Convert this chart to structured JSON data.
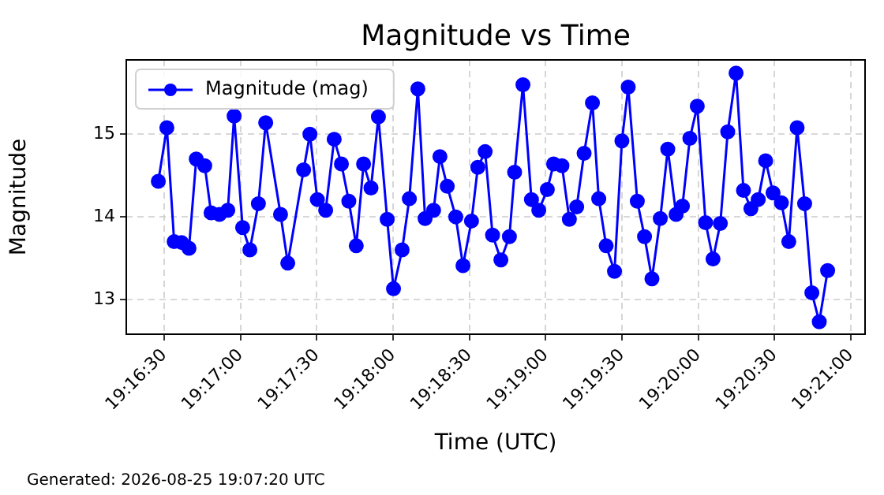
{
  "chart_data": {
    "type": "line",
    "title": "Magnitude vs Time",
    "xlabel": "Time (UTC)",
    "ylabel": "Magnitude",
    "annotations": [
      "Generated: 2026-08-25 19:07:20 UTC"
    ],
    "x": [
      19.27436,
      19.27529,
      19.27609,
      19.2769,
      19.27771,
      19.2785,
      19.27943,
      19.28012,
      19.28104,
      19.28195,
      19.28264,
      19.28357,
      19.28436,
      19.28529,
      19.28609,
      19.28771,
      19.2885,
      19.29023,
      19.29092,
      19.29173,
      19.29264,
      19.29357,
      19.29436,
      19.29517,
      19.29598,
      19.29678,
      19.29759,
      19.2984,
      19.29936,
      19.30005,
      19.30099,
      19.30178,
      19.30271,
      19.3035,
      19.30443,
      19.30512,
      19.30592,
      19.30685,
      19.30764,
      19.30857,
      19.30926,
      19.31006,
      19.31087,
      19.31178,
      19.31271,
      19.31328,
      19.31419,
      19.31512,
      19.31592,
      19.31685,
      19.31754,
      19.31845,
      19.31926,
      19.32006,
      19.32087,
      19.32178,
      19.32247,
      19.32328,
      19.32419,
      19.325,
      19.32569,
      19.32668,
      19.32747,
      19.32828,
      19.32919,
      19.33001,
      19.33092,
      19.33161,
      19.33242,
      19.33323,
      19.33414,
      19.33495,
      19.33575,
      19.33656,
      19.33747,
      19.33828,
      19.33909,
      19.33989,
      19.3407,
      19.34151,
      19.34242,
      19.34323,
      19.34414,
      19.34496,
      19.34575,
      19.34656,
      19.34747
    ],
    "series": [
      {
        "name": "Magnitude (mag)",
        "color": "#0000ff",
        "values": [
          14.43,
          15.08,
          13.7,
          13.69,
          13.62,
          14.7,
          14.62,
          14.05,
          14.03,
          14.08,
          15.22,
          13.87,
          13.6,
          14.16,
          15.14,
          14.03,
          13.44,
          14.57,
          15.0,
          14.21,
          14.08,
          14.94,
          14.64,
          14.19,
          13.65,
          14.64,
          14.35,
          15.21,
          13.97,
          13.13,
          13.6,
          14.22,
          15.55,
          13.98,
          14.08,
          14.73,
          14.37,
          14.0,
          13.41,
          13.95,
          14.6,
          14.79,
          13.78,
          13.48,
          13.76,
          14.54,
          15.6,
          14.21,
          14.08,
          14.33,
          14.64,
          14.62,
          13.97,
          14.12,
          14.77,
          15.38,
          14.22,
          13.65,
          13.34,
          14.92,
          15.57,
          14.19,
          13.76,
          13.25,
          13.98,
          14.82,
          14.03,
          14.13,
          14.95,
          15.34,
          13.93,
          13.49,
          13.92,
          15.03,
          15.74,
          14.32,
          14.1,
          14.21,
          14.68,
          14.29,
          14.17,
          13.7,
          15.08,
          14.16,
          13.08,
          12.73,
          13.35
        ]
      }
    ],
    "xlim": [
      19.27086,
      19.35156
    ],
    "xticks": [
      {
        "value": 19.275,
        "label": "19:16:30"
      },
      {
        "value": 19.28333,
        "label": "19:17:00"
      },
      {
        "value": 19.29167,
        "label": "19:17:30"
      },
      {
        "value": 19.3,
        "label": "19:18:00"
      },
      {
        "value": 19.30833,
        "label": "19:18:30"
      },
      {
        "value": 19.31667,
        "label": "19:19:00"
      },
      {
        "value": 19.325,
        "label": "19:19:30"
      },
      {
        "value": 19.33333,
        "label": "19:20:00"
      },
      {
        "value": 19.34167,
        "label": "19:20:30"
      },
      {
        "value": 19.35,
        "label": "19:21:00"
      }
    ],
    "ylim": [
      12.58,
      15.9
    ],
    "yticks": [
      13,
      14,
      15
    ],
    "grid": true,
    "legend": "top left",
    "marker": "circle",
    "line_style": "solid"
  }
}
